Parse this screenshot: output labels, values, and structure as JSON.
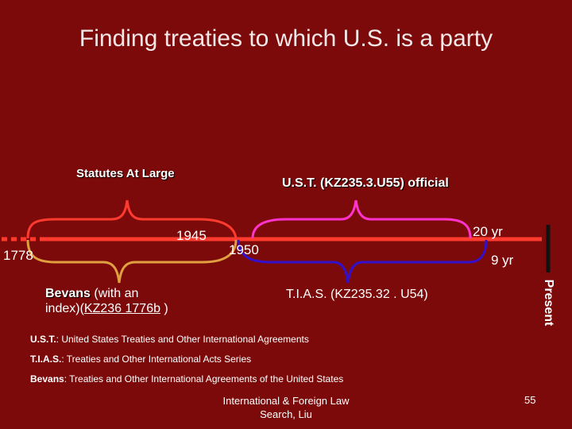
{
  "title": "Finding treaties to which U.S. is a party",
  "timeline": {
    "labels": {
      "statutes": "Statutes At Large",
      "ust": "U.S.T. (KZ235.3.U55) official",
      "year_1945": "1945",
      "year_1950": "1950",
      "year_1778": "1778",
      "span_20yr": "20 yr",
      "span_9yr": "9 yr",
      "bevans_bold": "Bevans",
      "bevans_rest1": " (with an",
      "bevans_line2_pre": "index)(",
      "bevans_callno": "KZ236 1776b",
      "bevans_line2_post": " )",
      "tias": "T.I.A.S. (KZ235.32 . U54)",
      "present": "Present"
    },
    "colors": {
      "statutes_bracket": "#ff3b2f",
      "ust_bracket": "#ff33cc",
      "tias_bracket": "#3311cc",
      "bevans_bracket": "#e0a040",
      "axis": "#ff3b2f",
      "present_bar": "#111111"
    }
  },
  "definitions": [
    {
      "abbr": "U.S.T.",
      "text": ": United States Treaties and Other International Agreements"
    },
    {
      "abbr": "T.I.A.S.",
      "text": ": Treaties and Other International Acts Series"
    },
    {
      "abbr": "Bevans",
      "text": ": Treaties and Other International Agreements of the United States"
    }
  ],
  "footer": {
    "line1": "International & Foreign Law",
    "line2": "Search, Liu",
    "page": "55"
  }
}
